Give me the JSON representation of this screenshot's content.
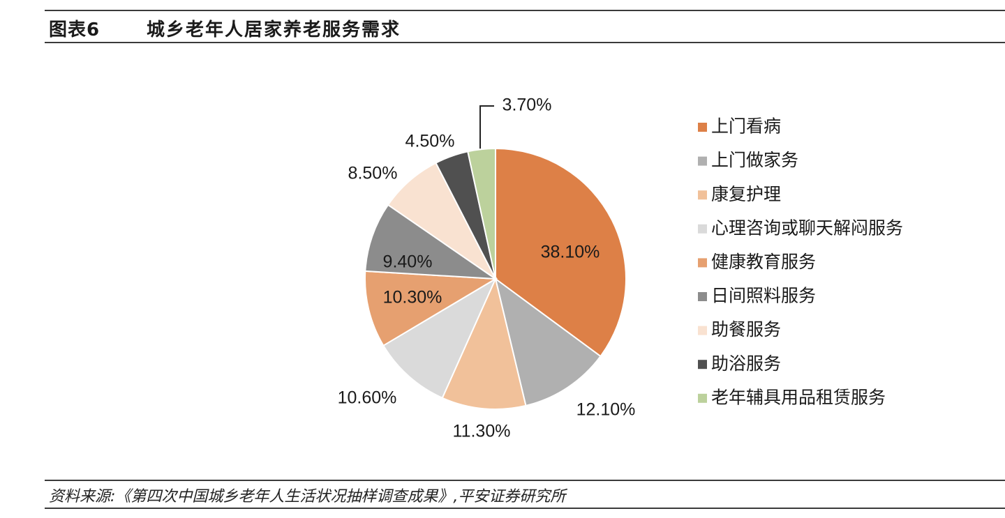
{
  "header": {
    "figure_label": "图表6",
    "title": "城乡老年人居家养老服务需求"
  },
  "source": "资料来源:《第四次中国城乡老年人生活状况抽样调查成果》,平安证券研究所",
  "chart_data": {
    "type": "pie",
    "legend_position": "right",
    "start_angle_deg": 0,
    "direction": "clockwise",
    "slices": [
      {
        "label": "上门看病",
        "value": 38.1,
        "display": "38.10%",
        "color": "#DD8047",
        "label_inside": true
      },
      {
        "label": "上门做家务",
        "value": 12.1,
        "display": "12.10%",
        "color": "#B0B0B0",
        "label_inside": false
      },
      {
        "label": "康复护理",
        "value": 11.3,
        "display": "11.30%",
        "color": "#F1C19A",
        "label_inside": false
      },
      {
        "label": "心理咨询或聊天解闷服务",
        "value": 10.6,
        "display": "10.60%",
        "color": "#DADADA",
        "label_inside": false
      },
      {
        "label": "健康教育服务",
        "value": 10.3,
        "display": "10.30%",
        "color": "#E6A070",
        "label_inside": true
      },
      {
        "label": "日间照料服务",
        "value": 9.4,
        "display": "9.40%",
        "color": "#8C8C8C",
        "label_inside": true
      },
      {
        "label": "助餐服务",
        "value": 8.5,
        "display": "8.50%",
        "color": "#F9E2D1",
        "label_inside": false
      },
      {
        "label": "助浴服务",
        "value": 4.5,
        "display": "4.50%",
        "color": "#505050",
        "label_inside": false
      },
      {
        "label": "老年辅具用品租赁服务",
        "value": 3.7,
        "display": "3.70%",
        "color": "#BCD19C",
        "label_inside": false
      }
    ]
  }
}
